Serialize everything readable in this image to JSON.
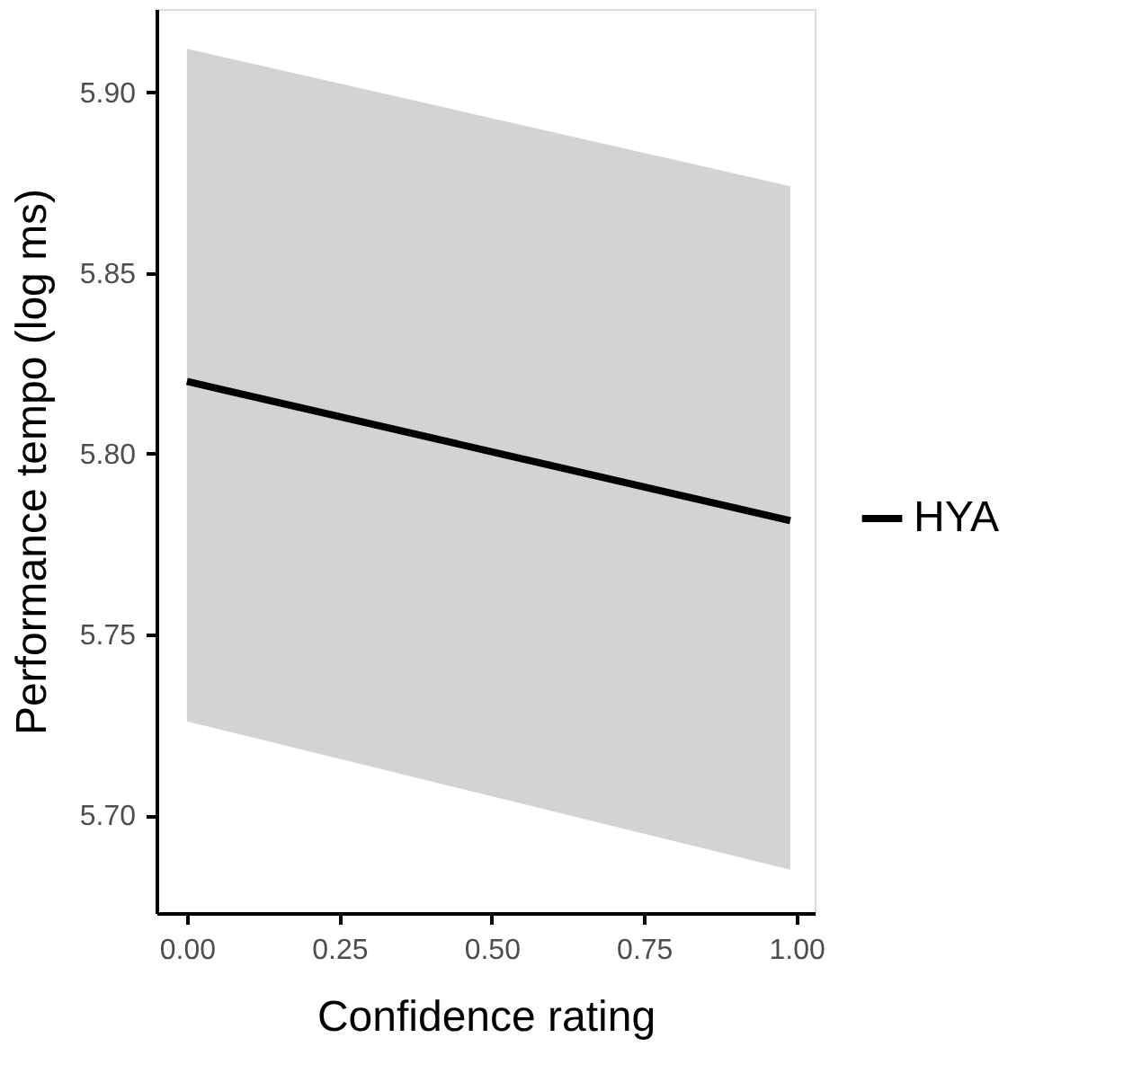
{
  "chart_data": {
    "type": "line",
    "xlabel": "Confidence rating",
    "ylabel": "Performance tempo (log ms)",
    "x": [
      0,
      0.99
    ],
    "series": [
      {
        "name": "HYA",
        "color": "#000000",
        "values": [
          5.82,
          5.7815
        ],
        "lower": [
          5.726,
          5.685
        ],
        "upper": [
          5.912,
          5.874
        ]
      }
    ],
    "xlim": [
      -0.05,
      1.03
    ],
    "xticks": [
      {
        "value": 0,
        "label": "0.00"
      },
      {
        "value": 0.25,
        "label": "0.25"
      },
      {
        "value": 0.5,
        "label": "0.50"
      },
      {
        "value": 0.75,
        "label": "0.75"
      },
      {
        "value": 1,
        "label": "1.00"
      }
    ],
    "ylim": [
      5.673,
      5.923
    ],
    "yticks": [
      {
        "value": 5.7,
        "label": "5.70"
      },
      {
        "value": 5.75,
        "label": "5.75"
      },
      {
        "value": 5.8,
        "label": "5.80"
      },
      {
        "value": 5.85,
        "label": "5.85"
      },
      {
        "value": 5.9,
        "label": "5.90"
      }
    ],
    "legend": "right",
    "grid": false,
    "line_style": "solid",
    "marker": "none"
  }
}
